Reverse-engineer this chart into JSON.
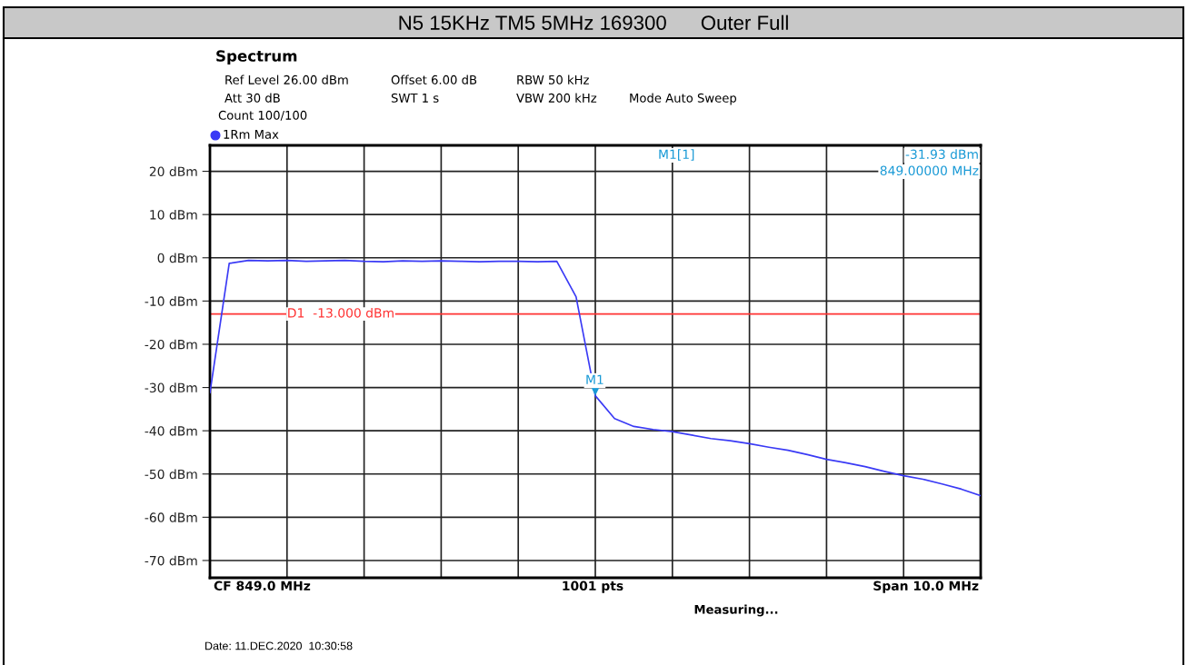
{
  "chart_data": {
    "type": "line",
    "title": "N5 15KHz TM5 5MHz 169300      Outer Full",
    "categories": [
      null,
      null,
      null,
      null,
      null,
      null,
      null,
      null,
      null,
      null,
      null,
      null,
      null,
      null,
      null,
      null,
      null,
      null,
      null,
      null,
      null,
      null,
      null,
      null,
      null,
      null,
      null,
      null,
      null,
      null,
      null,
      null,
      null,
      null,
      null,
      null,
      null,
      null,
      null,
      null,
      null
    ],
    "series": [
      {
        "color": "#3a3af5",
        "values": [
          -31.2,
          -1.3,
          -0.6,
          -0.7,
          -0.6,
          -0.8,
          -0.7,
          -0.6,
          -0.8,
          -0.9,
          -0.7,
          -0.8,
          -0.7,
          -0.8,
          -0.9,
          -0.8,
          -0.8,
          -0.9,
          -0.8,
          -9.0,
          -31.9,
          -37.2,
          -39.0,
          -39.7,
          -40.2,
          -41.0,
          -41.8,
          -42.3,
          -43.0,
          -43.8,
          -44.5,
          -45.5,
          -46.6,
          -47.4,
          -48.3,
          -49.4,
          -50.4,
          -51.2,
          -52.3,
          -53.5,
          -55.0
        ]
      }
    ],
    "ylim": [
      -74,
      26
    ],
    "yticks": [
      {
        "value": -70,
        "label": "-70 dBm"
      },
      {
        "value": -60,
        "label": "-60 dBm"
      },
      {
        "value": -50,
        "label": "-50 dBm"
      },
      {
        "value": -40,
        "label": "-40 dBm"
      },
      {
        "value": -30,
        "label": "-30 dBm"
      },
      {
        "value": -20,
        "label": "-20 dBm"
      },
      {
        "value": -10,
        "label": "-10 dBm"
      },
      {
        "value": 0,
        "label": "0 dBm"
      },
      {
        "value": 10,
        "label": "10 dBm"
      },
      {
        "value": 20,
        "label": "20 dBm"
      }
    ],
    "grid": true,
    "marker": "none",
    "line_style": "solid",
    "ref_lines": [
      {
        "axis": "y",
        "value": -13,
        "label": "D1  -13.000 dBm",
        "color": "#ff3333"
      }
    ],
    "annotations": [
      "Spectrum",
      "Ref Level 26.00 dBm",
      "Offset 6.00 dB",
      "RBW 50 kHz",
      "Att 30 dB",
      "SWT 1 s",
      "VBW 200 kHz",
      "Mode Auto Sweep",
      "Count 100/100",
      "1Rm Max",
      "M1[1]",
      "-31.93 dBm",
      "849.00000 MHz",
      "CF 849.0 MHz",
      "1001 pts",
      "Span 10.0 MHz",
      "Measuring...",
      "Date: 11.DEC.2020  10:30:58",
      "M1"
    ]
  }
}
